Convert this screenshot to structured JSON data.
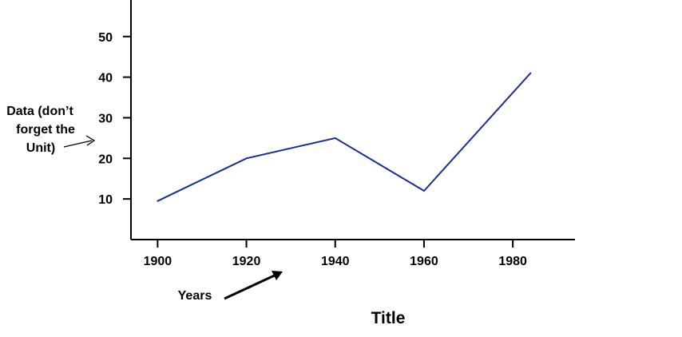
{
  "chart_data": {
    "type": "line",
    "title": "Title",
    "xlabel": "Years",
    "ylabel": "Data (don’t forget the Unit)",
    "ylabel_lines": [
      "Data (don’t",
      "forget the",
      "Unit)"
    ],
    "x_ticks": [
      1900,
      1920,
      1940,
      1960,
      1980
    ],
    "y_ticks": [
      10,
      20,
      30,
      40,
      50
    ],
    "xlim": [
      1894,
      1994
    ],
    "ylim": [
      0,
      59
    ],
    "grid": false,
    "series": [
      {
        "color": "#1a2f8c",
        "x": [
          1900,
          1920,
          1940,
          1960,
          1984
        ],
        "y": [
          9.5,
          20,
          25,
          12,
          41
        ]
      }
    ]
  }
}
